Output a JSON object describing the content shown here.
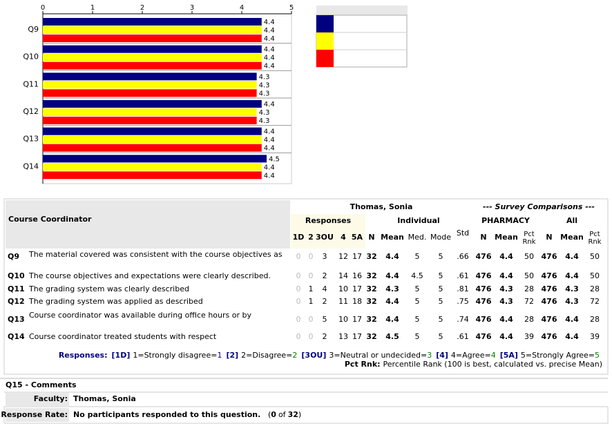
{
  "chart_data": {
    "type": "bar",
    "orientation": "horizontal",
    "categories": [
      "Q9",
      "Q10",
      "Q11",
      "Q12",
      "Q13",
      "Q14"
    ],
    "series": [
      {
        "color": "#000080",
        "values": [
          4.4,
          4.4,
          4.3,
          4.4,
          4.4,
          4.5
        ]
      },
      {
        "color": "#ffff00",
        "values": [
          4.4,
          4.4,
          4.3,
          4.3,
          4.4,
          4.4
        ]
      },
      {
        "color": "#ff0000",
        "values": [
          4.4,
          4.4,
          4.3,
          4.3,
          4.4,
          4.4
        ]
      }
    ],
    "xlim": [
      0,
      5
    ],
    "xticks": [
      0,
      1,
      2,
      3,
      4,
      5
    ],
    "legend": "right"
  },
  "table": {
    "section": "Course Coordinator",
    "person": "Thomas, Sonia",
    "comparisons": "--- Survey Comparisons ---",
    "groups": {
      "responses": "Responses",
      "individual": "Individual",
      "program": "PHARMACY",
      "all": "All"
    },
    "columns": [
      "1D",
      "2",
      "3OU",
      "4",
      "5A",
      "N",
      "Mean",
      "Med.",
      "Mode",
      "Std",
      "N",
      "Mean",
      [
        "Pct",
        "Rnk"
      ],
      "N",
      "Mean",
      [
        "Pct",
        "Rnk"
      ]
    ],
    "rows": [
      {
        "id": "Q9",
        "text": "The material covered was consistent with the course objectives as",
        "cells": [
          0,
          0,
          3,
          12,
          17,
          32,
          4.4,
          5,
          5,
          ".66",
          476,
          4.4,
          50,
          476,
          4.4,
          50
        ]
      },
      {
        "id": "Q10",
        "text": "The course objectives and expectations were clearly described.",
        "cells": [
          0,
          0,
          2,
          14,
          16,
          32,
          4.4,
          4.5,
          5,
          ".61",
          476,
          4.4,
          50,
          476,
          4.4,
          50
        ]
      },
      {
        "id": "Q11",
        "text": "The grading system was clearly described",
        "cells": [
          0,
          1,
          4,
          10,
          17,
          32,
          4.3,
          5,
          5,
          ".81",
          476,
          4.3,
          28,
          476,
          4.3,
          28
        ]
      },
      {
        "id": "Q12",
        "text": "The grading system was applied as described",
        "cells": [
          0,
          1,
          2,
          11,
          18,
          32,
          4.4,
          5,
          5,
          ".75",
          476,
          4.3,
          72,
          476,
          4.3,
          72
        ]
      },
      {
        "id": "Q13",
        "text": "Course coordinator was available during office hours or by",
        "cells": [
          0,
          0,
          5,
          10,
          17,
          32,
          4.4,
          5,
          5,
          ".74",
          476,
          4.4,
          28,
          476,
          4.4,
          28
        ]
      },
      {
        "id": "Q14",
        "text": "Course coordinator treated students with respect",
        "cells": [
          0,
          0,
          2,
          13,
          17,
          32,
          4.5,
          5,
          5,
          ".61",
          476,
          4.4,
          39,
          476,
          4.4,
          39
        ]
      }
    ],
    "legend": {
      "label": "Responses:",
      "items": [
        {
          "key": "[1D]",
          "text": "1=Strongly disagree=",
          "num": "1"
        },
        {
          "key": "[2]",
          "text": "2=Disagree=",
          "num": "2"
        },
        {
          "key": "[3OU]",
          "text": "3=Neutral or undecided=",
          "num": "3"
        },
        {
          "key": "[4]",
          "text": "4=Agree=",
          "num": "4"
        },
        {
          "key": "[5A]",
          "text": "5=Strongly Agree=",
          "num": "5"
        }
      ]
    },
    "pct_note": {
      "label": "Pct Rnk:",
      "text": "Percentile Rank (100 is best, calculated vs. precise Mean)"
    }
  },
  "comments": {
    "title": "Q15 - Comments",
    "faculty_label": "Faculty:",
    "faculty": "Thomas, Sonia",
    "rate_label": "Response Rate:",
    "rate_text": "No participants responded to this question.",
    "rate_detail": [
      "(",
      "0",
      "of",
      "32",
      ")"
    ]
  }
}
